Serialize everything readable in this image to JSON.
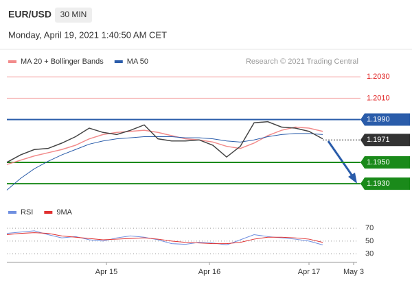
{
  "header": {
    "symbol": "EUR/USD",
    "timeframe": "30 MIN",
    "datetime": "Monday, April 19, 2021 1:40:50 AM CET",
    "source": "Research © 2021 Trading Central"
  },
  "chart_data": [
    {
      "type": "line",
      "x": [
        0,
        4,
        8,
        12,
        16,
        20,
        24,
        28,
        32,
        36,
        40,
        44,
        48,
        52,
        56,
        60,
        64,
        68,
        72,
        76,
        80,
        84,
        88,
        92
      ],
      "xlim": [
        0,
        102
      ],
      "ylim": [
        1.1916,
        1.2041
      ],
      "price": {
        "color": "#444444",
        "values": [
          1.195,
          1.1957,
          1.1962,
          1.1963,
          1.1968,
          1.1974,
          1.1982,
          1.1978,
          1.1976,
          1.198,
          1.1985,
          1.1972,
          1.197,
          1.197,
          1.1971,
          1.1966,
          1.1955,
          1.1965,
          1.1987,
          1.1988,
          1.1983,
          1.1982,
          1.1979,
          1.1972
        ]
      },
      "series": [
        {
          "name": "MA 20 + Bollinger Bands",
          "color": "#f28b8b",
          "values": [
            1.1948,
            1.1952,
            1.1956,
            1.1959,
            1.1962,
            1.1966,
            1.1972,
            1.1976,
            1.1978,
            1.1979,
            1.198,
            1.1978,
            1.1975,
            1.1972,
            1.1971,
            1.1969,
            1.1965,
            1.1963,
            1.1968,
            1.1975,
            1.198,
            1.1983,
            1.1982,
            1.1979
          ]
        },
        {
          "name": "MA 50",
          "color": "#2a5caa",
          "values": [
            1.1924,
            1.1935,
            1.1944,
            1.1951,
            1.1957,
            1.1962,
            1.1967,
            1.197,
            1.1972,
            1.1973,
            1.1974,
            1.1974,
            1.1974,
            1.1973,
            1.1973,
            1.1972,
            1.197,
            1.1969,
            1.1971,
            1.1974,
            1.1976,
            1.1977,
            1.1977,
            1.1976
          ]
        }
      ],
      "levels": [
        {
          "value": 1.203,
          "label": "1.2030",
          "color": "#f08080",
          "box": false,
          "dashed": false
        },
        {
          "value": 1.201,
          "label": "1.2010",
          "color": "#f08080",
          "box": false,
          "dashed": false
        },
        {
          "value": 1.199,
          "label": "1.1990",
          "color": "#2a5caa",
          "box": true,
          "dashed": false
        },
        {
          "value": 1.1971,
          "label": "1.1971",
          "color": "#333333",
          "box": true,
          "dashed": true
        },
        {
          "value": 1.195,
          "label": "1.1950",
          "color": "#1a8a1a",
          "box": true,
          "dashed": false
        },
        {
          "value": 1.193,
          "label": "1.1930",
          "color": "#1a8a1a",
          "box": true,
          "dashed": false
        }
      ]
    },
    {
      "type": "line",
      "x": [
        0,
        4,
        8,
        12,
        16,
        20,
        24,
        28,
        32,
        36,
        40,
        44,
        48,
        52,
        56,
        60,
        64,
        68,
        72,
        76,
        80,
        84,
        88,
        92
      ],
      "xlim": [
        0,
        102
      ],
      "ylim": [
        20,
        84
      ],
      "yticks": [
        70,
        50,
        30
      ],
      "grid": true,
      "xticks": [
        {
          "value": 29,
          "label": "Apr 15"
        },
        {
          "value": 59,
          "label": "Apr 16"
        },
        {
          "value": 88,
          "label": "Apr 17"
        },
        {
          "value": 101,
          "label": "May 3"
        }
      ],
      "series": [
        {
          "name": "RSI",
          "color": "#6f8fe0",
          "values": [
            62,
            64,
            66,
            60,
            55,
            57,
            52,
            50,
            55,
            58,
            56,
            52,
            46,
            45,
            48,
            47,
            44,
            52,
            60,
            57,
            55,
            53,
            50,
            44
          ]
        },
        {
          "name": "9MA",
          "color": "#e03030",
          "values": [
            60,
            62,
            63,
            62,
            58,
            56,
            54,
            52,
            53,
            54,
            55,
            53,
            50,
            48,
            47,
            46,
            46,
            48,
            53,
            56,
            56,
            55,
            53,
            48
          ]
        }
      ]
    }
  ]
}
